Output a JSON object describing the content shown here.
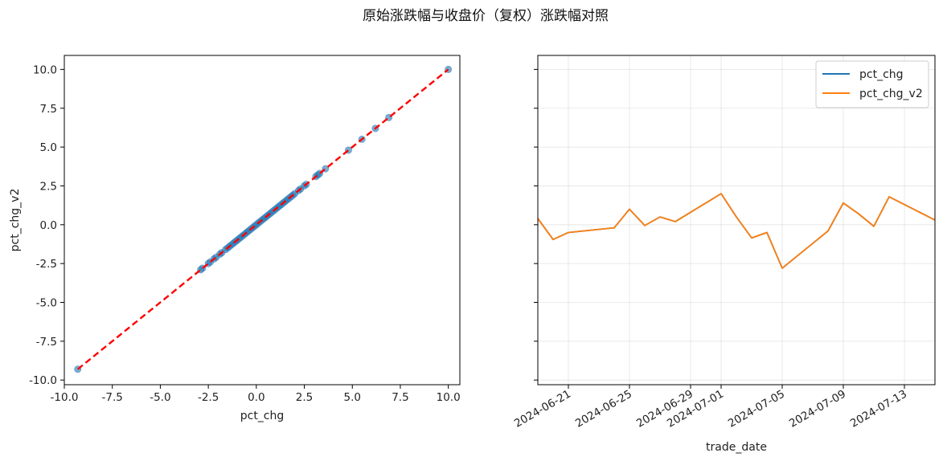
{
  "figure": {
    "title": "原始涨跌幅与收盘价（复权）涨跌幅对照"
  },
  "chart_data": [
    {
      "type": "scatter",
      "xlabel": "pct_chg",
      "ylabel": "pct_chg_v2",
      "xlim": [
        -10.0,
        10.6
      ],
      "ylim": [
        -10.3,
        10.9
      ],
      "xticks": [
        "-10.0",
        "-7.5",
        "-5.0",
        "-2.5",
        "0.0",
        "2.5",
        "5.0",
        "7.5",
        "10.0"
      ],
      "yticks": [
        "10.0",
        "7.5",
        "5.0",
        "2.5",
        "0.0",
        "-2.5",
        "-5.0",
        "-7.5",
        "-10.0"
      ],
      "grid": false,
      "point_color": "#1f77b4",
      "line_color": "#ff0000",
      "reference_line": {
        "from": [
          -9.3,
          -9.3
        ],
        "to": [
          10.0,
          10.0
        ],
        "style": "dashed"
      },
      "points": [
        [
          -9.3,
          -9.3
        ],
        [
          -2.9,
          -2.9
        ],
        [
          -2.8,
          -2.8
        ],
        [
          -2.5,
          -2.5
        ],
        [
          -2.4,
          -2.4
        ],
        [
          -2.2,
          -2.2
        ],
        [
          -2.1,
          -2.1
        ],
        [
          -1.9,
          -1.9
        ],
        [
          -1.8,
          -1.8
        ],
        [
          -1.6,
          -1.6
        ],
        [
          -1.5,
          -1.5
        ],
        [
          -1.4,
          -1.4
        ],
        [
          -1.3,
          -1.3
        ],
        [
          -1.2,
          -1.2
        ],
        [
          -1.1,
          -1.1
        ],
        [
          -1.0,
          -1.0
        ],
        [
          -0.9,
          -0.9
        ],
        [
          -0.8,
          -0.8
        ],
        [
          -0.7,
          -0.7
        ],
        [
          -0.6,
          -0.6
        ],
        [
          -0.5,
          -0.5
        ],
        [
          -0.4,
          -0.4
        ],
        [
          -0.3,
          -0.3
        ],
        [
          -0.2,
          -0.2
        ],
        [
          -0.1,
          -0.1
        ],
        [
          0.0,
          0.0
        ],
        [
          0.1,
          0.1
        ],
        [
          0.2,
          0.2
        ],
        [
          0.3,
          0.3
        ],
        [
          0.4,
          0.4
        ],
        [
          0.5,
          0.5
        ],
        [
          0.6,
          0.6
        ],
        [
          0.7,
          0.7
        ],
        [
          0.8,
          0.8
        ],
        [
          0.9,
          0.9
        ],
        [
          1.0,
          1.0
        ],
        [
          1.1,
          1.1
        ],
        [
          1.2,
          1.2
        ],
        [
          1.3,
          1.3
        ],
        [
          1.4,
          1.4
        ],
        [
          1.5,
          1.5
        ],
        [
          1.6,
          1.6
        ],
        [
          1.7,
          1.7
        ],
        [
          1.8,
          1.8
        ],
        [
          1.9,
          1.9
        ],
        [
          2.0,
          2.0
        ],
        [
          2.2,
          2.2
        ],
        [
          2.3,
          2.3
        ],
        [
          2.5,
          2.5
        ],
        [
          2.6,
          2.6
        ],
        [
          3.1,
          3.1
        ],
        [
          3.2,
          3.2
        ],
        [
          3.3,
          3.3
        ],
        [
          3.6,
          3.6
        ],
        [
          4.8,
          4.8
        ],
        [
          5.5,
          5.5
        ],
        [
          6.2,
          6.2
        ],
        [
          6.9,
          6.9
        ],
        [
          10.0,
          10.0
        ]
      ]
    },
    {
      "type": "line",
      "xlabel": "trade_date",
      "ylabel": "",
      "ylim": [
        -10.3,
        10.9
      ],
      "xlim": [
        "2024-06-19",
        "2024-07-15"
      ],
      "xticks": [
        "2024-06-21",
        "2024-06-25",
        "2024-06-29",
        "2024-07-01",
        "2024-07-05",
        "2024-07-09",
        "2024-07-13"
      ],
      "grid": true,
      "legend_position": "top-right",
      "series": [
        {
          "name": "pct_chg",
          "color": "#1f77b4",
          "points": [
            [
              "2024-06-19",
              0.4
            ],
            [
              "2024-06-20",
              -0.95
            ],
            [
              "2024-06-21",
              -0.5
            ],
            [
              "2024-06-24",
              -0.2
            ],
            [
              "2024-06-25",
              1.0
            ],
            [
              "2024-06-26",
              -0.05
            ],
            [
              "2024-06-27",
              0.5
            ],
            [
              "2024-06-28",
              0.2
            ],
            [
              "2024-07-01",
              2.0
            ],
            [
              "2024-07-02",
              0.5
            ],
            [
              "2024-07-03",
              -0.85
            ],
            [
              "2024-07-04",
              -0.5
            ],
            [
              "2024-07-05",
              -2.8
            ],
            [
              "2024-07-08",
              -0.4
            ],
            [
              "2024-07-09",
              1.4
            ],
            [
              "2024-07-10",
              0.7
            ],
            [
              "2024-07-11",
              -0.1
            ],
            [
              "2024-07-12",
              1.8
            ],
            [
              "2024-07-15",
              0.3
            ]
          ]
        },
        {
          "name": "pct_chg_v2",
          "color": "#ff7f0e",
          "points": [
            [
              "2024-06-19",
              0.4
            ],
            [
              "2024-06-20",
              -0.95
            ],
            [
              "2024-06-21",
              -0.5
            ],
            [
              "2024-06-24",
              -0.2
            ],
            [
              "2024-06-25",
              1.0
            ],
            [
              "2024-06-26",
              -0.05
            ],
            [
              "2024-06-27",
              0.5
            ],
            [
              "2024-06-28",
              0.2
            ],
            [
              "2024-07-01",
              2.0
            ],
            [
              "2024-07-02",
              0.5
            ],
            [
              "2024-07-03",
              -0.85
            ],
            [
              "2024-07-04",
              -0.5
            ],
            [
              "2024-07-05",
              -2.8
            ],
            [
              "2024-07-08",
              -0.4
            ],
            [
              "2024-07-09",
              1.4
            ],
            [
              "2024-07-10",
              0.7
            ],
            [
              "2024-07-11",
              -0.1
            ],
            [
              "2024-07-12",
              1.8
            ],
            [
              "2024-07-15",
              0.3
            ]
          ]
        }
      ]
    }
  ]
}
